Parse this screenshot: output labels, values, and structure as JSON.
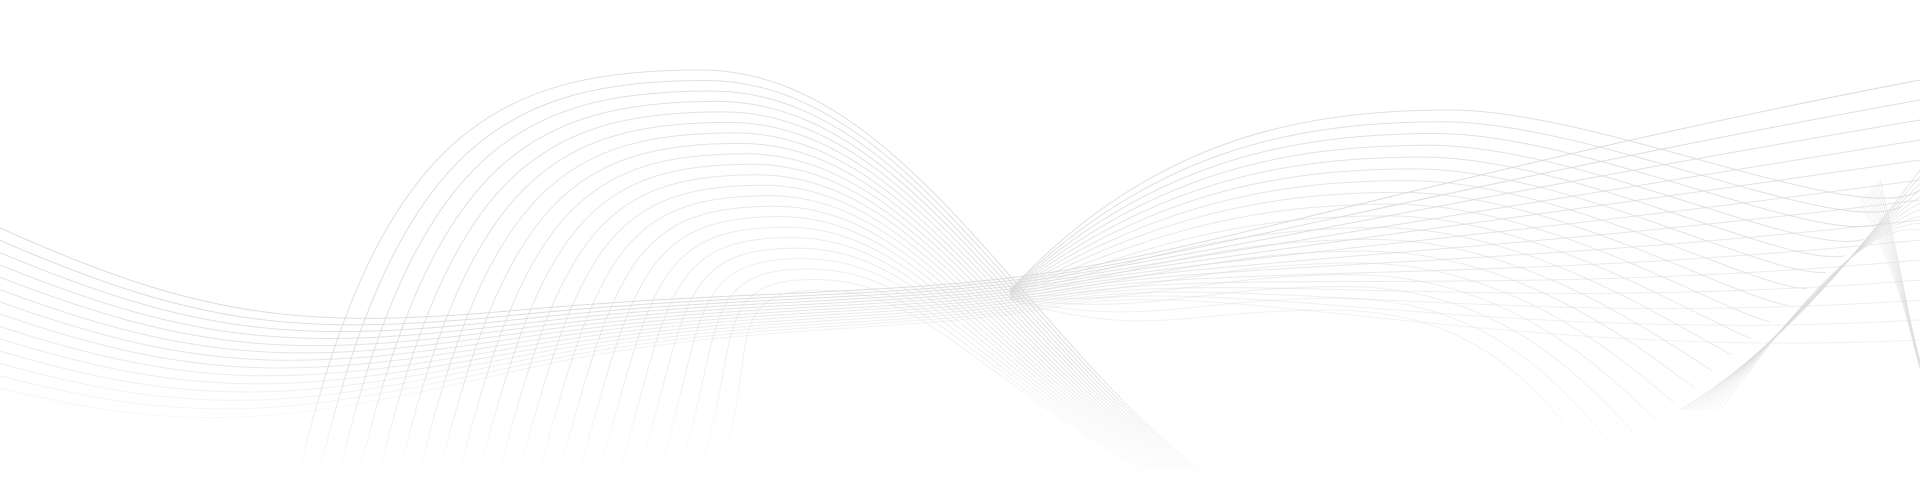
{
  "background": "#ffffff",
  "line_color": "#d9d9d9",
  "wave_groups": [
    {
      "name": "left-flowing-waves",
      "count": 14
    },
    {
      "name": "center-arc-waves",
      "count": 22
    },
    {
      "name": "right-arc-waves",
      "count": 18
    },
    {
      "name": "right-crossing-waves",
      "count": 10
    }
  ]
}
